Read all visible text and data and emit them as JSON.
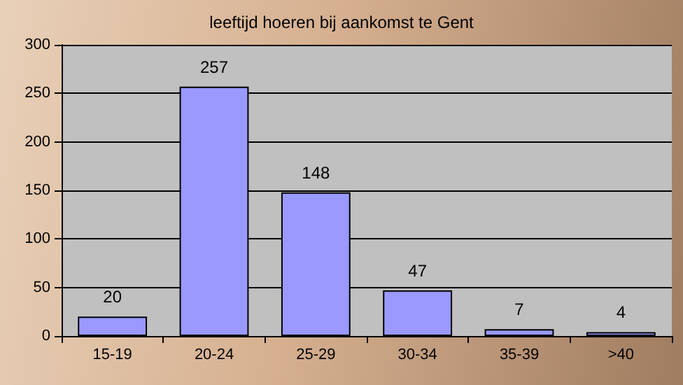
{
  "chart_data": {
    "type": "bar",
    "title": "leeftijd hoeren bij aankomst te Gent",
    "categories": [
      "15-19",
      "20-24",
      "25-29",
      "30-34",
      "35-39",
      ">40"
    ],
    "values": [
      20,
      257,
      148,
      47,
      7,
      4
    ],
    "color": "#9999ff",
    "ylim": [
      0,
      300
    ],
    "yticks": [
      0,
      50,
      100,
      150,
      200,
      250,
      300
    ],
    "grid": "y",
    "data_labels": true
  }
}
